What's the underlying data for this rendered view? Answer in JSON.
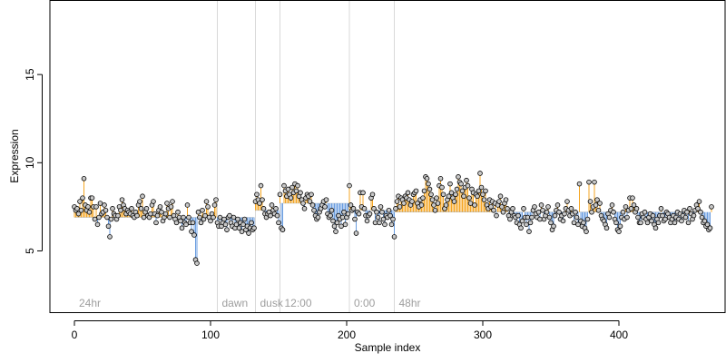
{
  "chart_data": {
    "type": "scatter",
    "title": "",
    "xlabel": "Sample index",
    "ylabel": "Expression",
    "xlim": [
      -18,
      478
    ],
    "ylim": [
      1.5,
      19.2
    ],
    "xticks": [
      0,
      100,
      200,
      300,
      400
    ],
    "yticks": [
      5,
      10,
      15
    ],
    "baseline_note": "",
    "colors": {
      "above": "#f5a623",
      "below": "#6a9de0",
      "point_fill": "#c8c8c8",
      "point_stroke": "#000000",
      "separator": "#d9d9d9",
      "period_label": "#9e9e9e"
    },
    "periods": [
      {
        "label": "24hr",
        "start": 0,
        "end": 105
      },
      {
        "label": "dawn",
        "start": 105,
        "end": 133
      },
      {
        "label": "dusk",
        "start": 133,
        "end": 151
      },
      {
        "label": "12:00",
        "start": 151,
        "end": 202
      },
      {
        "label": "0:00",
        "start": 202,
        "end": 235
      },
      {
        "label": "48hr",
        "start": 235,
        "end": 463
      }
    ],
    "segments": [
      {
        "start": 0,
        "end": 105,
        "baseline": 6.9,
        "values": [
          7.5,
          7.3,
          7.4,
          7.1,
          7.8,
          7.3,
          8.0,
          9.1,
          7.6,
          7.3,
          7.5,
          7.2,
          8.0,
          8.0,
          7.5,
          6.8,
          7.5,
          6.5,
          6.9,
          7.7,
          7.1,
          7.2,
          7.6,
          7.3,
          6.9,
          6.4,
          5.8,
          6.8,
          7.4,
          7.1,
          7.0,
          6.8,
          7.0,
          7.5,
          7.3,
          7.9,
          7.6,
          7.4,
          7.1,
          7.3,
          7.2,
          7.1,
          7.4,
          7.0,
          6.9,
          7.2,
          7.0,
          7.6,
          7.8,
          7.4,
          8.1,
          6.9,
          7.2,
          7.4,
          7.0,
          6.9,
          7.1,
          7.6,
          7.8,
          7.1,
          6.6,
          7.0,
          7.3,
          7.5,
          7.2,
          6.7,
          6.9,
          7.1,
          7.7,
          7.4,
          6.9,
          7.5,
          7.8,
          7.0,
          6.8,
          6.6,
          7.2,
          6.9,
          6.7,
          6.3,
          6.9,
          6.6,
          6.5,
          7.6,
          6.9,
          6.6,
          6.1,
          6.6,
          5.9,
          4.5,
          4.3,
          7.2,
          6.9,
          6.6,
          7.3,
          6.8,
          7.0,
          7.8,
          7.5,
          6.9,
          6.7,
          7.1,
          6.9,
          7.6,
          7.9
        ]
      },
      {
        "start": 105,
        "end": 133,
        "baseline": 6.9,
        "values": [
          6.6,
          6.4,
          6.9,
          6.4,
          6.6,
          6.8,
          6.5,
          6.2,
          6.9,
          7.0,
          6.6,
          6.4,
          6.9,
          6.3,
          6.5,
          6.8,
          6.3,
          6.6,
          6.1,
          6.5,
          6.8,
          6.2,
          6.4,
          6.0,
          6.3,
          6.6,
          6.2,
          6.3
        ]
      },
      {
        "start": 133,
        "end": 151,
        "baseline": 7.3,
        "values": [
          7.8,
          8.2,
          7.9,
          7.7,
          8.7,
          7.9,
          7.4,
          7.1,
          6.9,
          7.1,
          7.2,
          7.0,
          7.6,
          7.3,
          7.1,
          7.4,
          7.0,
          6.6
        ]
      },
      {
        "start": 151,
        "end": 202,
        "baseline": 7.7,
        "values": [
          8.2,
          6.3,
          6.2,
          8.7,
          8.4,
          8.1,
          8.5,
          8.2,
          8.0,
          8.6,
          8.3,
          8.8,
          8.4,
          8.7,
          8.1,
          8.3,
          7.9,
          7.7,
          7.4,
          8.0,
          8.2,
          8.1,
          7.8,
          8.2,
          7.6,
          7.3,
          7.0,
          6.8,
          6.9,
          7.2,
          7.4,
          7.6,
          7.8,
          7.5,
          7.9,
          7.1,
          6.9,
          7.0,
          7.3,
          6.7,
          6.4,
          6.1,
          6.6,
          7.0,
          6.8,
          6.4,
          6.9,
          7.2,
          6.5,
          6.9,
          7.1
        ]
      },
      {
        "start": 202,
        "end": 235,
        "baseline": 7.3,
        "values": [
          8.7,
          7.6,
          7.3,
          7.4,
          6.8,
          6.0,
          7.2,
          7.1,
          8.3,
          7.5,
          8.3,
          7.4,
          7.0,
          6.7,
          7.0,
          7.1,
          8.0,
          8.2,
          7.4,
          6.6,
          7.2,
          6.9,
          6.6,
          7.5,
          7.2,
          6.8,
          6.5,
          7.0,
          6.9,
          7.3,
          7.0,
          6.5,
          6.8
        ]
      },
      {
        "start": 235,
        "end": 463,
        "baseline": 7.2,
        "values": [
          5.8,
          7.4,
          7.8,
          8.1,
          7.5,
          8.0,
          7.9,
          7.7,
          8.1,
          8.0,
          8.3,
          7.9,
          7.6,
          7.8,
          8.2,
          8.3,
          8.4,
          7.7,
          7.5,
          7.9,
          7.6,
          8.0,
          8.4,
          9.2,
          9.1,
          8.8,
          8.5,
          8.2,
          7.9,
          7.6,
          7.3,
          8.0,
          7.7,
          8.7,
          9.1,
          8.6,
          8.2,
          7.4,
          7.6,
          7.9,
          8.1,
          8.8,
          8.3,
          8.0,
          7.8,
          8.2,
          8.5,
          9.2,
          8.9,
          8.8,
          8.4,
          8.1,
          8.6,
          9.0,
          8.7,
          8.0,
          7.7,
          8.5,
          8.3,
          7.6,
          8.2,
          8.1,
          8.4,
          9.4,
          8.6,
          8.2,
          7.9,
          8.4,
          7.6,
          7.4,
          7.9,
          7.5,
          7.8,
          7.3,
          7.7,
          7.0,
          7.6,
          7.8,
          8.1,
          7.5,
          7.2,
          7.7,
          7.9,
          7.4,
          7.0,
          6.8,
          7.2,
          7.4,
          7.0,
          6.9,
          6.6,
          7.0,
          6.5,
          6.3,
          6.7,
          7.4,
          6.9,
          6.5,
          6.9,
          6.1,
          6.6,
          6.9,
          7.3,
          7.5,
          7.1,
          6.9,
          7.2,
          6.8,
          7.6,
          7.3,
          6.8,
          7.0,
          7.2,
          7.5,
          6.9,
          6.6,
          6.2,
          6.4,
          7.0,
          7.3,
          7.6,
          7.2,
          6.8,
          7.0,
          6.7,
          7.1,
          7.4,
          7.8,
          7.3,
          7.0,
          7.4,
          7.1,
          6.6,
          7.2,
          6.9,
          6.5,
          8.8,
          6.7,
          6.4,
          6.6,
          6.3,
          6.1,
          6.8,
          8.9,
          7.8,
          7.2,
          7.5,
          8.9,
          7.6,
          7.9,
          7.3,
          7.7,
          7.0,
          6.8,
          6.7,
          6.5,
          6.3,
          7.1,
          6.9,
          7.3,
          7.6,
          7.2,
          6.8,
          6.6,
          6.2,
          6.1,
          6.4,
          6.9,
          7.2,
          6.8,
          7.5,
          6.9,
          7.3,
          8.0,
          7.4,
          8.0,
          7.6,
          7.2,
          7.4,
          6.9,
          6.6,
          6.6,
          7.1,
          6.9,
          7.2,
          6.8,
          6.6,
          6.9,
          7.1,
          6.7,
          7.0,
          6.5,
          6.3,
          6.8,
          6.6,
          7.0,
          7.4,
          7.0,
          6.7,
          6.8,
          7.2,
          7.1,
          6.9,
          6.6,
          6.8,
          7.0,
          6.6,
          6.9,
          7.2,
          6.8,
          7.1,
          6.7,
          7.0,
          7.3,
          6.9,
          7.2,
          6.6,
          7.4,
          7.1,
          6.8,
          7.0,
          7.3,
          7.6,
          7.4,
          7.8,
          7.2,
          6.9,
          6.6,
          6.7,
          6.4,
          6.5,
          6.2,
          6.3,
          7.5
        ]
      }
    ]
  }
}
